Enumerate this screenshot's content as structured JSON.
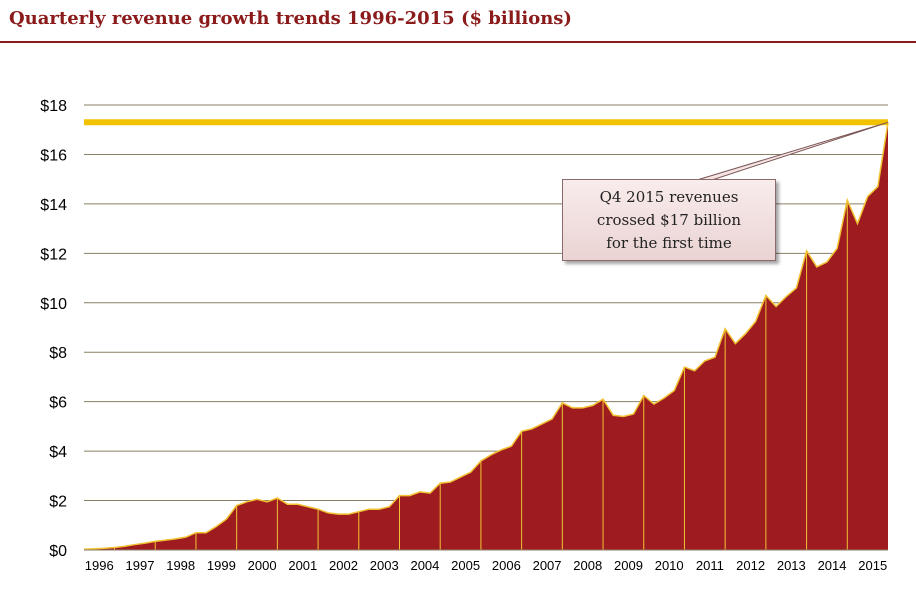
{
  "title": "Quarterly revenue growth trends 1996-2015 ($ billions)",
  "colors": {
    "title": "#8b1a1a",
    "area_fill": "#9e1c20",
    "area_outline": "#f1c232",
    "highlight_line": "#f2c100",
    "grid": "#8a7f66",
    "axis_text": "#000000"
  },
  "annotation": {
    "lines": [
      "Q4 2015 revenues",
      "crossed $17 billion",
      "for the first time"
    ]
  },
  "chart_data": {
    "type": "area",
    "title": "Quarterly revenue growth trends 1996-2015 ($ billions)",
    "xlabel": "",
    "ylabel": "",
    "ylim": [
      0,
      18
    ],
    "y_tick_labels": [
      "$0",
      "$2",
      "$4",
      "$6",
      "$8",
      "$10",
      "$12",
      "$14",
      "$16",
      "$18"
    ],
    "y_ticks": [
      0,
      2,
      4,
      6,
      8,
      10,
      12,
      14,
      16,
      18
    ],
    "years": [
      "1996",
      "1997",
      "1998",
      "1999",
      "2000",
      "2001",
      "2002",
      "2003",
      "2004",
      "2005",
      "2006",
      "2007",
      "2008",
      "2009",
      "2010",
      "2011",
      "2012",
      "2013",
      "2014",
      "2015"
    ],
    "quarters_per_year": 4,
    "values": [
      0.03,
      0.05,
      0.07,
      0.1,
      0.15,
      0.22,
      0.28,
      0.35,
      0.4,
      0.45,
      0.52,
      0.7,
      0.7,
      0.95,
      1.25,
      1.8,
      1.95,
      2.05,
      1.95,
      2.1,
      1.85,
      1.85,
      1.75,
      1.65,
      1.5,
      1.45,
      1.45,
      1.55,
      1.65,
      1.65,
      1.75,
      2.2,
      2.2,
      2.35,
      2.3,
      2.7,
      2.75,
      2.95,
      3.15,
      3.6,
      3.85,
      4.05,
      4.2,
      4.8,
      4.9,
      5.1,
      5.3,
      5.95,
      5.75,
      5.75,
      5.85,
      6.1,
      5.45,
      5.4,
      5.5,
      6.25,
      5.9,
      6.15,
      6.45,
      7.4,
      7.25,
      7.65,
      7.8,
      8.95,
      8.35,
      8.75,
      9.25,
      10.3,
      9.85,
      10.25,
      10.6,
      12.1,
      11.45,
      11.65,
      12.2,
      14.15,
      13.2,
      14.3,
      14.7,
      17.3
    ],
    "highlight_value": 17.3,
    "highlight_label": "Q4 2015 revenues crossed $17 billion for the first time",
    "grid": true,
    "legend": "none"
  }
}
